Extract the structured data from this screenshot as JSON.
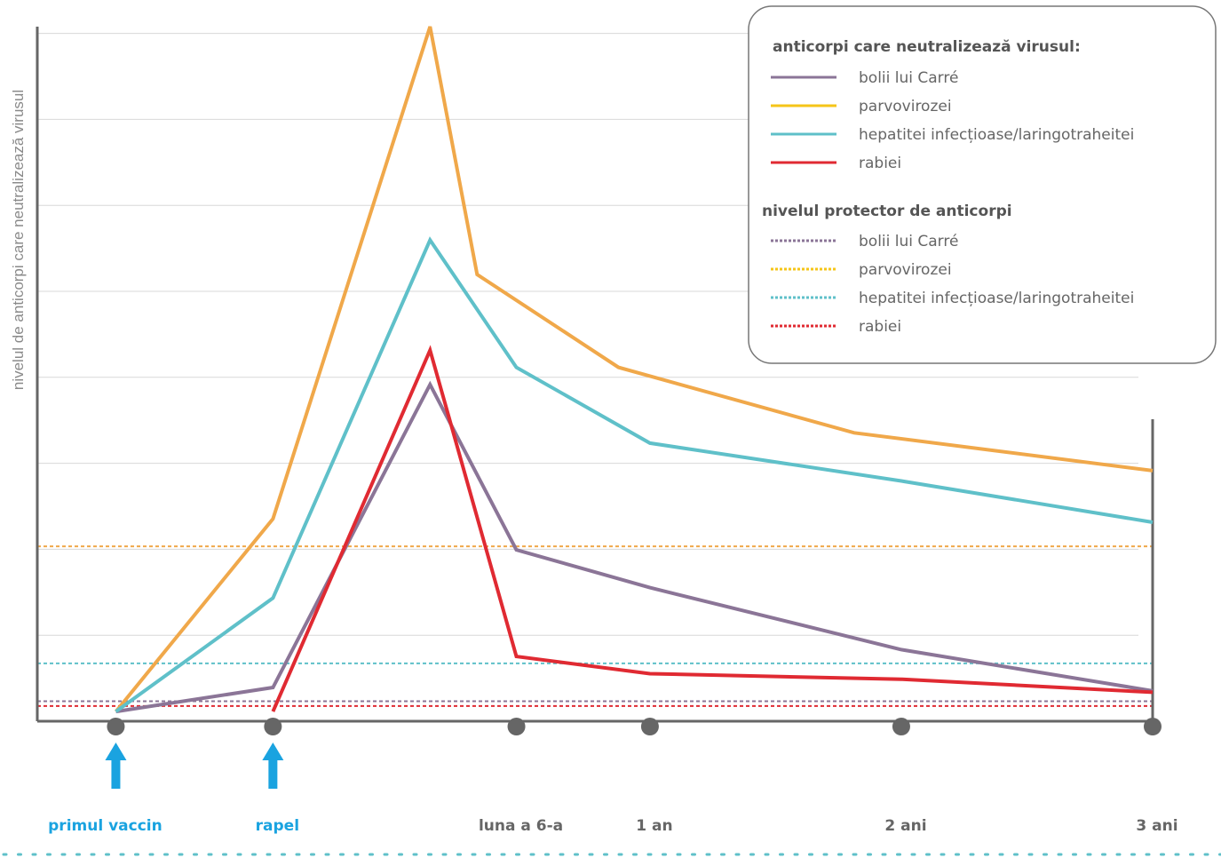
{
  "chart_data": {
    "type": "line",
    "title": "",
    "ylabel": "nivelul de anticorpi care neutralizează virusul",
    "xlabel": "",
    "grid": true,
    "legend_position": "top-right",
    "ylim": [
      0,
      100
    ],
    "x_ticks": [
      {
        "key": "primul",
        "x": 0,
        "label": "primul vaccin",
        "event": true
      },
      {
        "key": "rapel",
        "x": 1,
        "label": "rapel",
        "event": true
      },
      {
        "key": "luna6",
        "x": 2.55,
        "label": "luna a 6-a",
        "event": false
      },
      {
        "key": "an1",
        "x": 3.4,
        "label": "1 an",
        "event": false
      },
      {
        "key": "ani2",
        "x": 5,
        "label": "2 ani",
        "event": false
      },
      {
        "key": "ani3",
        "x": 6.6,
        "label": "3 ani",
        "event": false
      }
    ],
    "xlim": [
      -0.5,
      6.6
    ],
    "legend_neutralizing_title": "anticorpi care neutralizează virusul:",
    "legend_protective_title": "nivelul protector de anticorpi",
    "series": [
      {
        "name": "bolii lui Carré",
        "color": "#8b7597",
        "points": [
          [
            0,
            0.5
          ],
          [
            1,
            4
          ],
          [
            2,
            48
          ],
          [
            2.55,
            24
          ],
          [
            3.4,
            18.5
          ],
          [
            5,
            9.5
          ],
          [
            6.6,
            3.5
          ]
        ]
      },
      {
        "name": "parvovirozei",
        "color": "#f0a84a",
        "points": [
          [
            0,
            0.5
          ],
          [
            1,
            28.5
          ],
          [
            2,
            100
          ],
          [
            2.3,
            64
          ],
          [
            3.2,
            50.5
          ],
          [
            4.7,
            41
          ],
          [
            6.6,
            35.5
          ]
        ]
      },
      {
        "name": "hepatitei infecțioase/laringotraheitei",
        "color": "#5fc0c9",
        "points": [
          [
            0,
            0.5
          ],
          [
            1,
            17
          ],
          [
            2,
            69
          ],
          [
            2.55,
            50.5
          ],
          [
            3.4,
            39.5
          ],
          [
            5,
            34
          ],
          [
            6.6,
            28
          ]
        ]
      },
      {
        "name": "rabiei",
        "color": "#e02a32",
        "points": [
          [
            1,
            0.5
          ],
          [
            2,
            53
          ],
          [
            2.55,
            8.5
          ],
          [
            3.4,
            6
          ],
          [
            5,
            5.2
          ],
          [
            6.6,
            3.3
          ]
        ]
      }
    ],
    "protective_levels": [
      {
        "name": "bolii lui Carré",
        "color": "#8b7597",
        "value": 2
      },
      {
        "name": "parvovirozei",
        "color": "#f0a84a",
        "value": 24.5
      },
      {
        "name": "hepatitei infecțioase/laringotraheitei",
        "color": "#5fc0c9",
        "value": 7.5
      },
      {
        "name": "rabiei",
        "color": "#e02a32",
        "value": 1.3
      }
    ],
    "legend_neutralizing_colors": [
      "#8b7597",
      "#f5c518",
      "#5fc0c9",
      "#e02a32"
    ],
    "legend_protective_colors": [
      "#8b7597",
      "#f5c518",
      "#5fc0c9",
      "#e02a32"
    ],
    "event_arrow_color": "#1aa3e0"
  }
}
